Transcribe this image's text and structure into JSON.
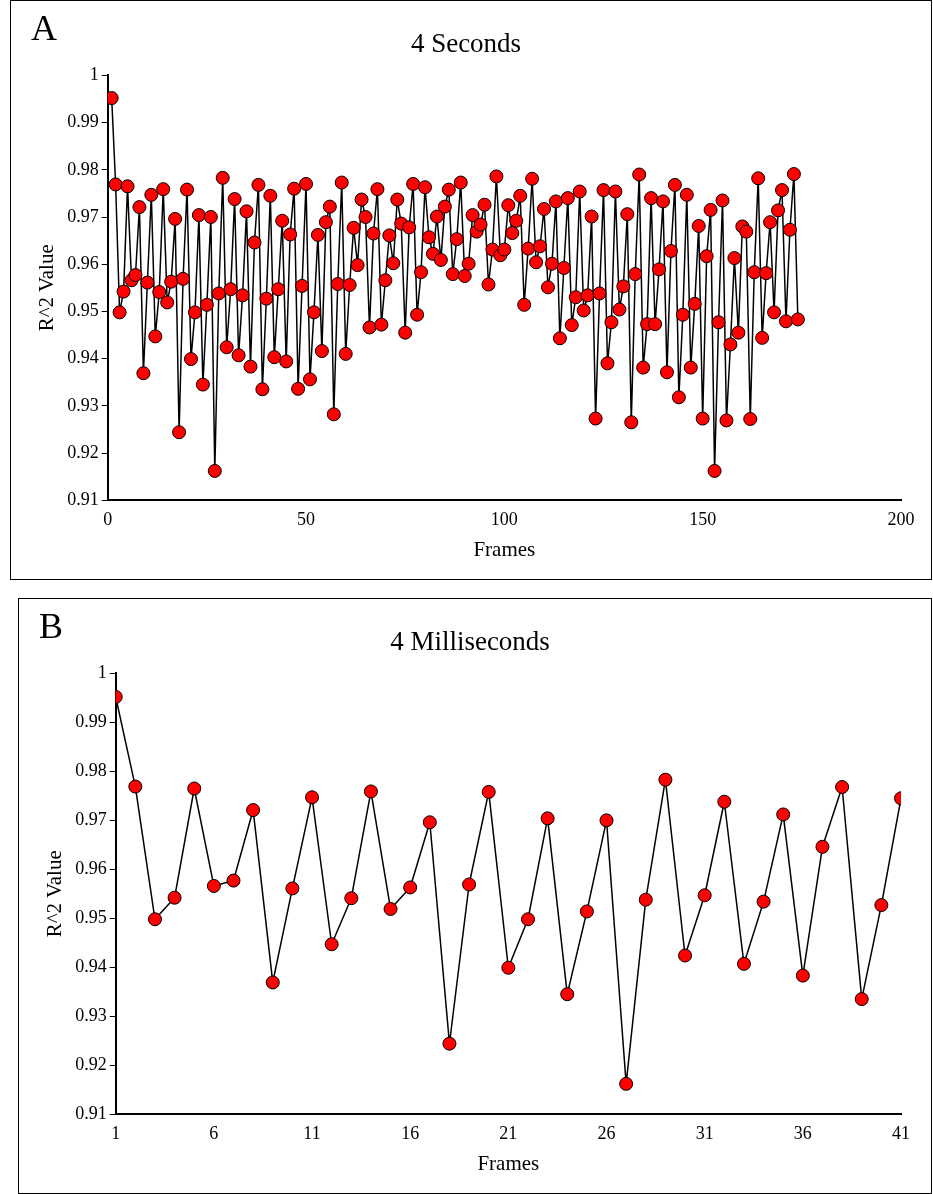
{
  "chart_data": [
    {
      "type": "line",
      "title": "4 Seconds",
      "xlabel": "Frames",
      "ylabel": "R^2 Value",
      "annotations": [
        "A"
      ],
      "marker": "circle",
      "line_style": "solid",
      "grid": false,
      "legend": false,
      "xlim": [
        0,
        200
      ],
      "xticks": [
        0,
        50,
        100,
        150,
        200
      ],
      "ylim": [
        0.91,
        1
      ],
      "yticks": [
        0.91,
        0.92,
        0.93,
        0.94,
        0.95,
        0.96,
        0.97,
        0.98,
        0.99,
        1
      ],
      "x": [
        1,
        2,
        3,
        4,
        5,
        6,
        7,
        8,
        9,
        10,
        11,
        12,
        13,
        14,
        15,
        16,
        17,
        18,
        19,
        20,
        21,
        22,
        23,
        24,
        25,
        26,
        27,
        28,
        29,
        30,
        31,
        32,
        33,
        34,
        35,
        36,
        37,
        38,
        39,
        40,
        41,
        42,
        43,
        44,
        45,
        46,
        47,
        48,
        49,
        50,
        51,
        52,
        53,
        54,
        55,
        56,
        57,
        58,
        59,
        60,
        61,
        62,
        63,
        64,
        65,
        66,
        67,
        68,
        69,
        70,
        71,
        72,
        73,
        74,
        75,
        76,
        77,
        78,
        79,
        80,
        81,
        82,
        83,
        84,
        85,
        86,
        87,
        88,
        89,
        90,
        91,
        92,
        93,
        94,
        95,
        96,
        97,
        98,
        99,
        100,
        101,
        102,
        103,
        104,
        105,
        106,
        107,
        108,
        109,
        110,
        111,
        112,
        113,
        114,
        115,
        116,
        117,
        118,
        119,
        120,
        121,
        122,
        123,
        124,
        125,
        126,
        127,
        128,
        129,
        130,
        131,
        132,
        133,
        134,
        135,
        136,
        137,
        138,
        139,
        140,
        141,
        142,
        143,
        144,
        145,
        146,
        147,
        148,
        149,
        150,
        151,
        152,
        153,
        154,
        155,
        156,
        157,
        158,
        159,
        160,
        161,
        162,
        163,
        164,
        165,
        166,
        167,
        168,
        169,
        170,
        171,
        172,
        173,
        174
      ],
      "series": [
        {
          "color": "#ff0000",
          "values": [
            0.9952,
            0.9769,
            0.9498,
            0.9542,
            0.9765,
            0.9566,
            0.9577,
            0.9721,
            0.9369,
            0.9561,
            0.9747,
            0.9447,
            0.9541,
            0.9759,
            0.9519,
            0.9563,
            0.9696,
            0.9244,
            0.9569,
            0.9758,
            0.9399,
            0.9498,
            0.9704,
            0.9345,
            0.9514,
            0.97,
            0.9162,
            0.9538,
            0.9783,
            0.9424,
            0.9547,
            0.9738,
            0.9407,
            0.9534,
            0.9712,
            0.9383,
            0.9646,
            0.9768,
            0.9335,
            0.9527,
            0.9745,
            0.9403,
            0.9547,
            0.9692,
            0.9394,
            0.9663,
            0.976,
            0.9336,
            0.9554,
            0.977,
            0.9356,
            0.9498,
            0.9662,
            0.9416,
            0.9689,
            0.9722,
            0.9282,
            0.9558,
            0.9773,
            0.941,
            0.9556,
            0.9677,
            0.9598,
            0.9737,
            0.97,
            0.9466,
            0.9665,
            0.9759,
            0.9472,
            0.9566,
            0.9661,
            0.9602,
            0.9737,
            0.9686,
            0.9455,
            0.9678,
            0.977,
            0.9493,
            0.9583,
            0.9763,
            0.9657,
            0.9622,
            0.9701,
            0.9609,
            0.9722,
            0.9758,
            0.9579,
            0.9653,
            0.9773,
            0.9575,
            0.9601,
            0.9704,
            0.9669,
            0.9684,
            0.9726,
            0.9557,
            0.9631,
            0.9786,
            0.9619,
            0.9631,
            0.9725,
            0.9666,
            0.9692,
            0.9745,
            0.9514,
            0.9633,
            0.9781,
            0.9604,
            0.9638,
            0.9717,
            0.9551,
            0.9601,
            0.9733,
            0.9443,
            0.9592,
            0.974,
            0.9471,
            0.953,
            0.9754,
            0.9502,
            0.9534,
            0.9701,
            0.9273,
            0.9538,
            0.9757,
            0.939,
            0.9477,
            0.9754,
            0.9504,
            0.9553,
            0.9706,
            0.9265,
            0.9579,
            0.979,
            0.9381,
            0.9473,
            0.974,
            0.9473,
            0.9589,
            0.9733,
            0.9371,
            0.9628,
            0.9768,
            0.9318,
            0.9493,
            0.9747,
            0.9381,
            0.9516,
            0.9681,
            0.9273,
            0.9617,
            0.9715,
            0.9162,
            0.9477,
            0.9735,
            0.9269,
            0.943,
            0.9613,
            0.9455,
            0.968,
            0.9669,
            0.9272,
            0.9583,
            0.9782,
            0.9444,
            0.9581,
            0.9689,
            0.9498,
            0.9714,
            0.9757,
            0.9479,
            0.9673,
            0.9791,
            0.9483
          ]
        }
      ]
    },
    {
      "type": "line",
      "title": "4 Milliseconds",
      "xlabel": "Frames",
      "ylabel": "R^2 Value",
      "annotations": [
        "B"
      ],
      "marker": "circle",
      "line_style": "solid",
      "grid": false,
      "legend": false,
      "xlim": [
        1,
        41
      ],
      "xticks": [
        1,
        6,
        11,
        16,
        21,
        26,
        31,
        36,
        41
      ],
      "ylim": [
        0.91,
        1
      ],
      "yticks": [
        0.91,
        0.92,
        0.93,
        0.94,
        0.95,
        0.96,
        0.97,
        0.98,
        0.99,
        1
      ],
      "x": [
        1,
        2,
        3,
        4,
        5,
        6,
        7,
        8,
        9,
        10,
        11,
        12,
        13,
        14,
        15,
        16,
        17,
        18,
        19,
        20,
        21,
        22,
        23,
        24,
        25,
        26,
        27,
        28,
        29,
        30,
        31,
        32,
        33,
        34,
        35,
        36,
        37,
        38,
        39,
        40,
        41
      ],
      "series": [
        {
          "color": "#ff0000",
          "values": [
            0.9952,
            0.9769,
            0.9498,
            0.9542,
            0.9765,
            0.9566,
            0.9577,
            0.9721,
            0.9369,
            0.9561,
            0.9747,
            0.9447,
            0.9541,
            0.9759,
            0.9519,
            0.9563,
            0.9696,
            0.9244,
            0.9569,
            0.9758,
            0.9399,
            0.9498,
            0.9704,
            0.9345,
            0.9514,
            0.97,
            0.9162,
            0.9538,
            0.9783,
            0.9424,
            0.9547,
            0.9738,
            0.9407,
            0.9534,
            0.9712,
            0.9383,
            0.9646,
            0.9768,
            0.9335,
            0.9527,
            0.9745
          ]
        }
      ]
    }
  ]
}
